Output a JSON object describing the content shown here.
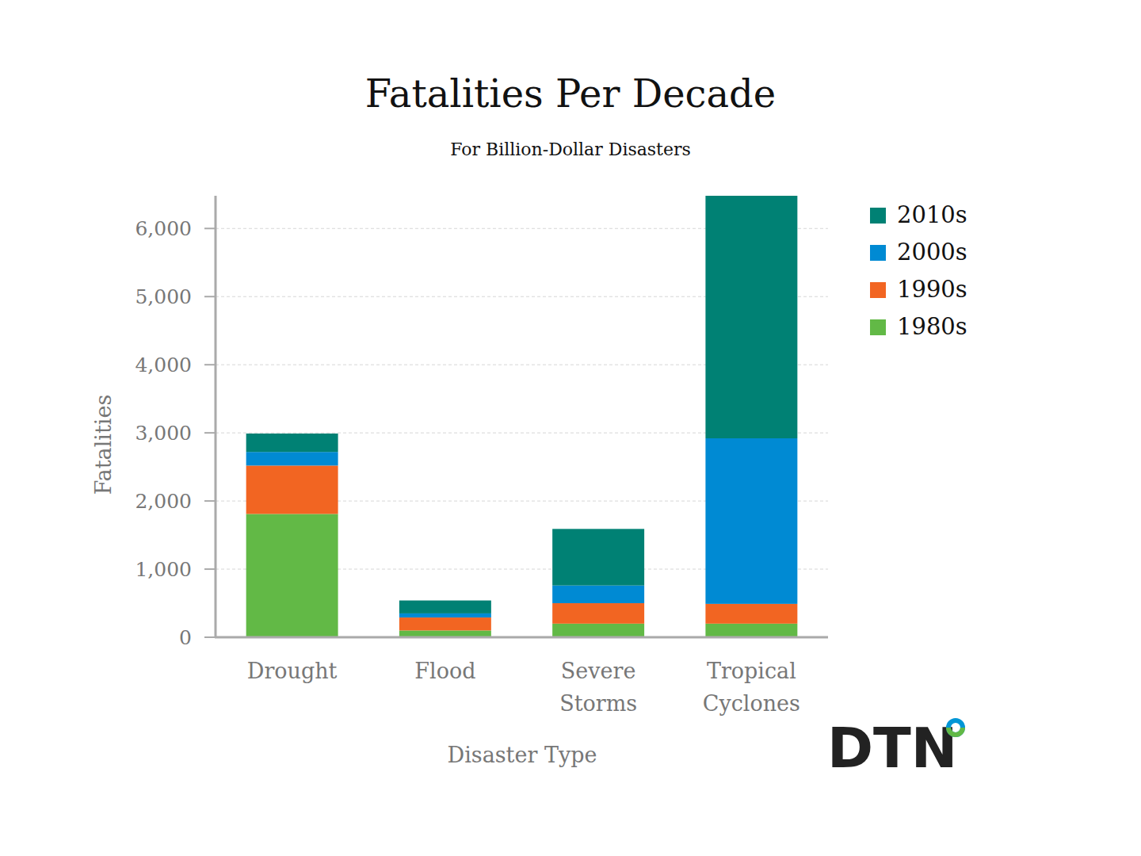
{
  "chart_data": {
    "type": "bar",
    "stacked": true,
    "title": "Fatalities Per Decade",
    "subtitle": "For Billion-Dollar Disasters",
    "x_label": "Disaster Type",
    "y_label": "Fatalities",
    "logo": "DTN",
    "categories": [
      "Drought",
      "Flood",
      "Severe Storms",
      "Tropical Cyclones"
    ],
    "series": [
      {
        "name": "1980s",
        "color": "#62b946",
        "values": [
          1810,
          100,
          200,
          200
        ]
      },
      {
        "name": "1990s",
        "color": "#f26522",
        "values": [
          710,
          190,
          300,
          290
        ]
      },
      {
        "name": "2000s",
        "color": "#008ad3",
        "values": [
          200,
          60,
          260,
          2430
        ]
      },
      {
        "name": "2010s",
        "color": "#008174",
        "values": [
          270,
          190,
          830,
          3560
        ]
      }
    ],
    "ylim": [
      0,
      6480
    ],
    "yticks": [
      0,
      {
        "value": 1000,
        "label": "1,000"
      },
      {
        "value": 2000,
        "label": "2,000"
      },
      {
        "value": 3000,
        "label": "3,000"
      },
      {
        "value": 4000,
        "label": "4,000"
      },
      {
        "value": 5000,
        "label": "5,000"
      },
      {
        "value": 6000,
        "label": "6,000"
      }
    ],
    "grid": true,
    "legend": "top-right"
  }
}
